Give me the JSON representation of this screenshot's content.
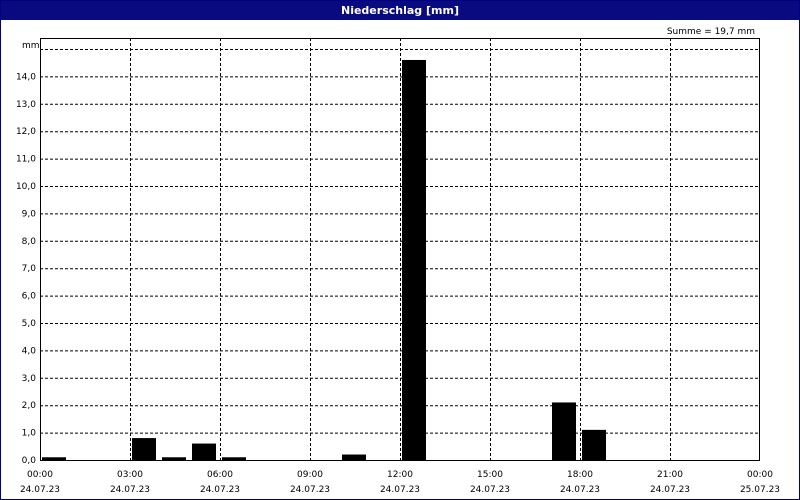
{
  "window": {
    "title": "Niederschlag [mm]"
  },
  "colors": {
    "title_bar": "#0a0a80",
    "bars": "#000000",
    "grid": "#000000"
  },
  "chart_data": {
    "type": "bar",
    "title": "Niederschlag [mm]",
    "ylabel": "mm",
    "xlabel": "",
    "ylim": [
      0,
      15
    ],
    "yticks": [
      0,
      1,
      2,
      3,
      4,
      5,
      6,
      7,
      8,
      9,
      10,
      11,
      12,
      13,
      14
    ],
    "ytick_labels": [
      "0,0",
      "1,0",
      "2,0",
      "3,0",
      "4,0",
      "5,0",
      "6,0",
      "7,0",
      "8,0",
      "9,0",
      "10,0",
      "11,0",
      "12,0",
      "13,0",
      "14,0"
    ],
    "xlim_hours": [
      0,
      24
    ],
    "xticks": [
      {
        "hour": 0,
        "time": "00:00",
        "date": "24.07.23"
      },
      {
        "hour": 3,
        "time": "03:00",
        "date": "24.07.23"
      },
      {
        "hour": 6,
        "time": "06:00",
        "date": "24.07.23"
      },
      {
        "hour": 9,
        "time": "09:00",
        "date": "24.07.23"
      },
      {
        "hour": 12,
        "time": "12:00",
        "date": "24.07.23"
      },
      {
        "hour": 15,
        "time": "15:00",
        "date": "24.07.23"
      },
      {
        "hour": 18,
        "time": "18:00",
        "date": "24.07.23"
      },
      {
        "hour": 21,
        "time": "21:00",
        "date": "24.07.23"
      },
      {
        "hour": 24,
        "time": "00:00",
        "date": "25.07.23"
      }
    ],
    "bars": [
      {
        "hour": 0,
        "value": 0.1
      },
      {
        "hour": 3,
        "value": 0.8
      },
      {
        "hour": 4,
        "value": 0.1
      },
      {
        "hour": 5,
        "value": 0.6
      },
      {
        "hour": 6,
        "value": 0.1
      },
      {
        "hour": 10,
        "value": 0.2
      },
      {
        "hour": 12,
        "value": 14.6
      },
      {
        "hour": 17,
        "value": 2.1
      },
      {
        "hour": 18,
        "value": 1.1
      }
    ],
    "annotation": "Summe = 19,7 mm",
    "grid": true
  }
}
